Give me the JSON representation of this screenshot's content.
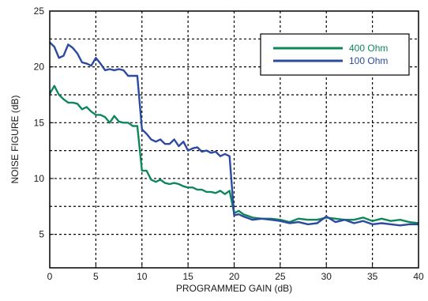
{
  "chart_data": {
    "type": "line",
    "title": "",
    "xlabel": "PROGRAMMED GAIN (dB)",
    "ylabel": "NOISE FIGURE (dB)",
    "xlim": [
      0,
      40
    ],
    "ylim": [
      2,
      25
    ],
    "xticks": [
      0,
      5,
      10,
      15,
      20,
      25,
      30,
      35,
      40
    ],
    "yticks": [
      5,
      10,
      15,
      20,
      25
    ],
    "grid": true,
    "grid_style": "dotted",
    "legend_position": "top-right",
    "series": [
      {
        "name": "400 Ohm",
        "color": "#10875a",
        "x": [
          0,
          0.5,
          1,
          1.5,
          2,
          2.5,
          3,
          3.5,
          4,
          4.5,
          5,
          5.5,
          6,
          6.5,
          7,
          7.5,
          8,
          8.5,
          9,
          9.5,
          10,
          10.5,
          11,
          11.5,
          12,
          12.5,
          13,
          13.5,
          14,
          14.5,
          15,
          15.5,
          16,
          16.5,
          17,
          17.5,
          18,
          18.5,
          19,
          19.5,
          20,
          20.5,
          21,
          22,
          23,
          24,
          25,
          26,
          27,
          28,
          29,
          30,
          31,
          32,
          33,
          34,
          35,
          36,
          37,
          38,
          39,
          40
        ],
        "y": [
          17.6,
          18.3,
          17.5,
          17.1,
          16.8,
          16.8,
          16.7,
          16.2,
          16.4,
          16.0,
          15.7,
          15.7,
          15.5,
          15.0,
          15.6,
          15.1,
          15.0,
          15.0,
          14.7,
          14.7,
          10.7,
          10.7,
          9.9,
          9.7,
          9.9,
          9.6,
          9.5,
          9.6,
          9.5,
          9.3,
          9.2,
          9.2,
          9.0,
          9.0,
          8.8,
          8.8,
          8.7,
          8.9,
          8.6,
          8.9,
          6.9,
          7.1,
          6.8,
          6.5,
          6.4,
          6.4,
          6.3,
          6.1,
          6.4,
          6.3,
          6.3,
          6.5,
          6.4,
          6.3,
          6.3,
          6.5,
          6.2,
          6.4,
          6.2,
          6.3,
          6.1,
          6.0
        ]
      },
      {
        "name": "100 Ohm",
        "color": "#2b4aa0",
        "x": [
          0,
          0.5,
          1,
          1.5,
          2,
          2.5,
          3,
          3.5,
          4,
          4.5,
          5,
          5.5,
          6,
          6.5,
          7,
          7.5,
          8,
          8.5,
          9,
          9.5,
          10,
          10.5,
          11,
          11.5,
          12,
          12.5,
          13,
          13.5,
          14,
          14.5,
          15,
          15.5,
          16,
          16.5,
          17,
          17.5,
          18,
          18.5,
          19,
          19.5,
          20,
          20.5,
          21,
          22,
          23,
          24,
          25,
          26,
          27,
          28,
          29,
          30,
          31,
          32,
          33,
          34,
          35,
          36,
          37,
          38,
          39,
          40
        ],
        "y": [
          22.2,
          21.8,
          20.8,
          21.0,
          22.0,
          21.7,
          21.2,
          20.4,
          20.3,
          20.1,
          20.8,
          20.3,
          19.7,
          19.8,
          19.7,
          19.8,
          19.7,
          19.2,
          19.2,
          19.2,
          14.4,
          14.0,
          13.5,
          13.3,
          13.5,
          13.1,
          13.1,
          13.5,
          12.9,
          13.3,
          12.5,
          12.7,
          12.8,
          12.4,
          12.5,
          12.3,
          12.4,
          12.0,
          12.2,
          12.0,
          6.7,
          6.8,
          6.6,
          6.3,
          6.4,
          6.3,
          6.2,
          6.0,
          6.1,
          5.9,
          6.0,
          6.6,
          6.1,
          6.3,
          6.0,
          6.2,
          5.9,
          6.0,
          5.9,
          5.8,
          5.9,
          5.9
        ]
      }
    ]
  }
}
